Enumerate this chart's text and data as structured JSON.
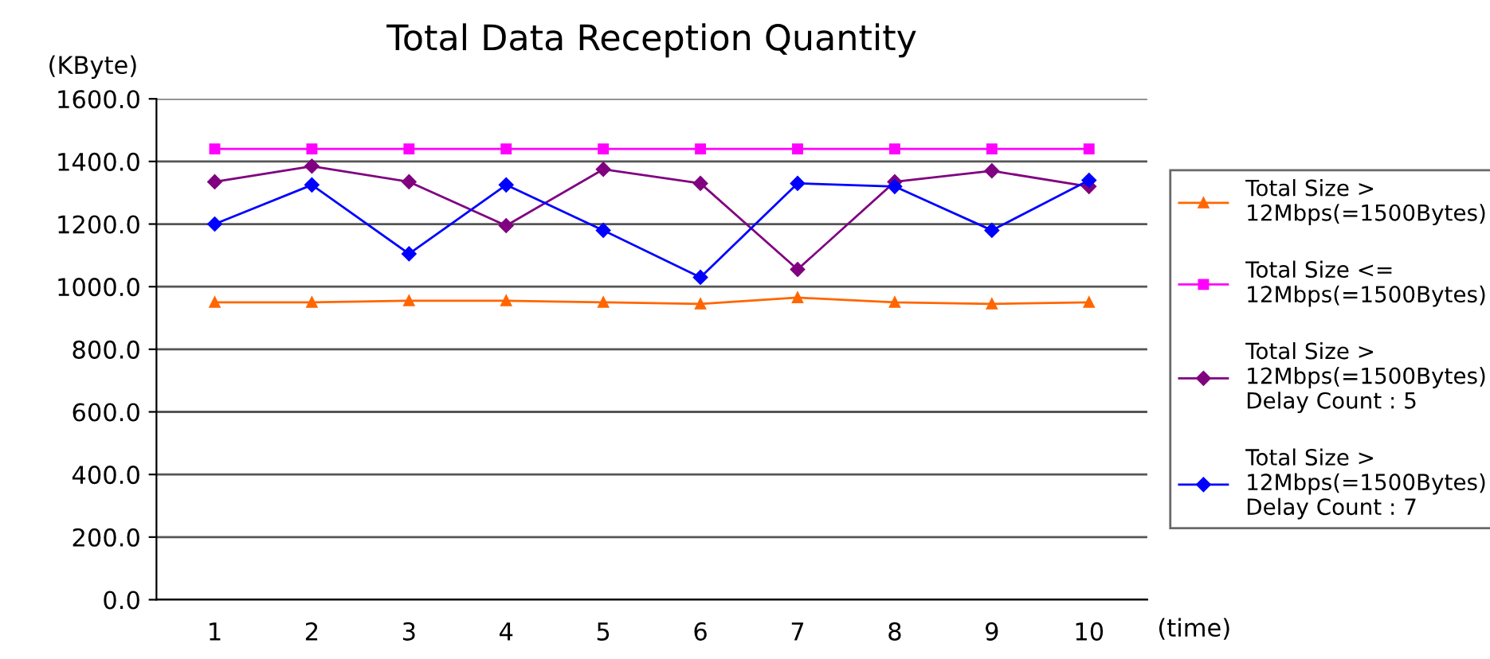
{
  "chart_data": {
    "type": "line",
    "title": "Total Data Reception Quantity",
    "ylabel": "(KByte)",
    "xlabel": "(time)",
    "categories": [
      "1",
      "2",
      "3",
      "4",
      "5",
      "6",
      "7",
      "8",
      "9",
      "10"
    ],
    "series": [
      {
        "name": "Total Size >\n12Mbps(=1500Bytes)",
        "color": "#ff6600",
        "marker": "triangle",
        "values": [
          950,
          950,
          955,
          955,
          950,
          945,
          965,
          950,
          945,
          950
        ]
      },
      {
        "name": "Total Size <=\n12Mbps(=1500Bytes)",
        "color": "#ff00ff",
        "marker": "square",
        "values": [
          1440,
          1440,
          1440,
          1440,
          1440,
          1440,
          1440,
          1440,
          1440,
          1440
        ]
      },
      {
        "name": "Total Size >\n12Mbps(=1500Bytes)\nDelay Count : 5",
        "color": "#800080",
        "marker": "diamond",
        "values": [
          1335,
          1385,
          1335,
          1195,
          1375,
          1330,
          1055,
          1335,
          1370,
          1320
        ]
      },
      {
        "name": "Total Size >\n12Mbps(=1500Bytes)\nDelay Count : 7",
        "color": "#0000ff",
        "marker": "diamond",
        "values": [
          1200,
          1325,
          1105,
          1325,
          1180,
          1030,
          1330,
          1320,
          1180,
          1340
        ]
      }
    ],
    "ylim": [
      0,
      1600
    ],
    "yticks": [
      {
        "value": 0,
        "label": "0.0"
      },
      {
        "value": 200,
        "label": "200.0"
      },
      {
        "value": 400,
        "label": "400.0"
      },
      {
        "value": 600,
        "label": "600.0"
      },
      {
        "value": 800,
        "label": "800.0"
      },
      {
        "value": 1000,
        "label": "1000.0"
      },
      {
        "value": 1200,
        "label": "1200.0"
      },
      {
        "value": 1400,
        "label": "1400.0"
      },
      {
        "value": 1600,
        "label": "1600.0"
      }
    ],
    "grid": "y",
    "legend": "right",
    "line_style": "solid"
  }
}
